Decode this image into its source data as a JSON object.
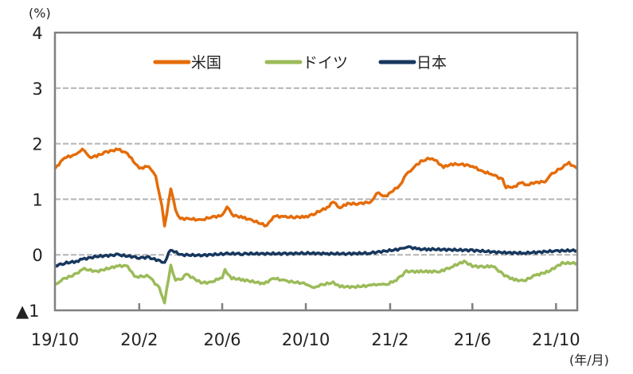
{
  "chart_data": {
    "type": "line",
    "y_unit": "(%)",
    "x_unit": "(年/月)",
    "ylim": [
      -1,
      4
    ],
    "y_ticks": [
      4,
      3,
      2,
      1,
      0,
      -1
    ],
    "y_tick_labels": [
      "4",
      "3",
      "2",
      "1",
      "0",
      "▲1"
    ],
    "x_tick_labels": [
      "19/10",
      "20/2",
      "20/6",
      "20/10",
      "21/2",
      "21/6",
      "21/10"
    ],
    "x_ticks": [
      "2019-10-01",
      "2020-02-01",
      "2020-06-01",
      "2020-10-01",
      "2021-02-01",
      "2021-06-01",
      "2021-10-01"
    ],
    "xlim": [
      "2019-10-01",
      "2021-11-01"
    ],
    "grid": "horizontal dashed",
    "legend_position": "top-center",
    "series": [
      {
        "name": "米国",
        "color": "#E46C0A",
        "points": [
          [
            "2019-10-01",
            1.55
          ],
          [
            "2019-10-15",
            1.75
          ],
          [
            "2019-11-01",
            1.8
          ],
          [
            "2019-11-10",
            1.92
          ],
          [
            "2019-11-20",
            1.75
          ],
          [
            "2019-12-01",
            1.78
          ],
          [
            "2019-12-15",
            1.85
          ],
          [
            "2020-01-01",
            1.9
          ],
          [
            "2020-01-15",
            1.82
          ],
          [
            "2020-02-01",
            1.55
          ],
          [
            "2020-02-15",
            1.6
          ],
          [
            "2020-02-25",
            1.4
          ],
          [
            "2020-03-05",
            0.9
          ],
          [
            "2020-03-09",
            0.5
          ],
          [
            "2020-03-18",
            1.2
          ],
          [
            "2020-03-25",
            0.8
          ],
          [
            "2020-04-01",
            0.65
          ],
          [
            "2020-04-15",
            0.65
          ],
          [
            "2020-05-01",
            0.62
          ],
          [
            "2020-05-15",
            0.68
          ],
          [
            "2020-06-01",
            0.7
          ],
          [
            "2020-06-08",
            0.88
          ],
          [
            "2020-06-15",
            0.72
          ],
          [
            "2020-07-01",
            0.67
          ],
          [
            "2020-07-15",
            0.62
          ],
          [
            "2020-08-05",
            0.52
          ],
          [
            "2020-08-15",
            0.7
          ],
          [
            "2020-09-01",
            0.68
          ],
          [
            "2020-09-15",
            0.68
          ],
          [
            "2020-10-01",
            0.68
          ],
          [
            "2020-10-15",
            0.75
          ],
          [
            "2020-11-01",
            0.85
          ],
          [
            "2020-11-10",
            0.95
          ],
          [
            "2020-11-20",
            0.85
          ],
          [
            "2020-12-01",
            0.92
          ],
          [
            "2020-12-15",
            0.92
          ],
          [
            "2021-01-05",
            0.95
          ],
          [
            "2021-01-12",
            1.12
          ],
          [
            "2021-01-25",
            1.05
          ],
          [
            "2021-02-05",
            1.15
          ],
          [
            "2021-02-15",
            1.25
          ],
          [
            "2021-02-25",
            1.45
          ],
          [
            "2021-03-05",
            1.55
          ],
          [
            "2021-03-18",
            1.68
          ],
          [
            "2021-03-31",
            1.74
          ],
          [
            "2021-04-10",
            1.68
          ],
          [
            "2021-04-20",
            1.58
          ],
          [
            "2021-05-01",
            1.63
          ],
          [
            "2021-05-15",
            1.63
          ],
          [
            "2021-06-01",
            1.6
          ],
          [
            "2021-06-15",
            1.5
          ],
          [
            "2021-07-01",
            1.45
          ],
          [
            "2021-07-15",
            1.35
          ],
          [
            "2021-07-20",
            1.22
          ],
          [
            "2021-08-01",
            1.22
          ],
          [
            "2021-08-10",
            1.3
          ],
          [
            "2021-08-20",
            1.26
          ],
          [
            "2021-09-01",
            1.3
          ],
          [
            "2021-09-15",
            1.32
          ],
          [
            "2021-09-25",
            1.45
          ],
          [
            "2021-10-10",
            1.58
          ],
          [
            "2021-10-20",
            1.65
          ],
          [
            "2021-11-01",
            1.55
          ]
        ]
      },
      {
        "name": "ドイツ",
        "color": "#9BBB59",
        "points": [
          [
            "2019-10-01",
            -0.55
          ],
          [
            "2019-10-10",
            -0.45
          ],
          [
            "2019-11-01",
            -0.35
          ],
          [
            "2019-11-10",
            -0.25
          ],
          [
            "2019-12-01",
            -0.3
          ],
          [
            "2020-01-01",
            -0.2
          ],
          [
            "2020-01-15",
            -0.2
          ],
          [
            "2020-01-25",
            -0.4
          ],
          [
            "2020-02-15",
            -0.38
          ],
          [
            "2020-03-01",
            -0.6
          ],
          [
            "2020-03-09",
            -0.85
          ],
          [
            "2020-03-18",
            -0.2
          ],
          [
            "2020-03-25",
            -0.45
          ],
          [
            "2020-04-01",
            -0.45
          ],
          [
            "2020-04-10",
            -0.35
          ],
          [
            "2020-05-01",
            -0.5
          ],
          [
            "2020-05-15",
            -0.5
          ],
          [
            "2020-06-01",
            -0.4
          ],
          [
            "2020-06-05",
            -0.28
          ],
          [
            "2020-06-15",
            -0.42
          ],
          [
            "2020-07-01",
            -0.45
          ],
          [
            "2020-08-01",
            -0.52
          ],
          [
            "2020-08-15",
            -0.42
          ],
          [
            "2020-09-01",
            -0.47
          ],
          [
            "2020-10-01",
            -0.52
          ],
          [
            "2020-10-10",
            -0.6
          ],
          [
            "2020-10-20",
            -0.55
          ],
          [
            "2020-11-10",
            -0.5
          ],
          [
            "2020-11-20",
            -0.57
          ],
          [
            "2020-12-10",
            -0.58
          ],
          [
            "2021-01-05",
            -0.55
          ],
          [
            "2021-01-15",
            -0.52
          ],
          [
            "2021-01-25",
            -0.55
          ],
          [
            "2021-02-10",
            -0.45
          ],
          [
            "2021-02-25",
            -0.3
          ],
          [
            "2021-03-15",
            -0.3
          ],
          [
            "2021-03-31",
            -0.3
          ],
          [
            "2021-04-15",
            -0.3
          ],
          [
            "2021-05-01",
            -0.22
          ],
          [
            "2021-05-20",
            -0.12
          ],
          [
            "2021-06-01",
            -0.2
          ],
          [
            "2021-06-15",
            -0.22
          ],
          [
            "2021-07-01",
            -0.2
          ],
          [
            "2021-07-15",
            -0.35
          ],
          [
            "2021-08-01",
            -0.45
          ],
          [
            "2021-08-15",
            -0.47
          ],
          [
            "2021-09-01",
            -0.37
          ],
          [
            "2021-09-20",
            -0.3
          ],
          [
            "2021-10-10",
            -0.15
          ],
          [
            "2021-11-01",
            -0.15
          ]
        ]
      },
      {
        "name": "日本",
        "color": "#17375E",
        "points": [
          [
            "2019-10-01",
            -0.2
          ],
          [
            "2019-10-15",
            -0.15
          ],
          [
            "2019-11-01",
            -0.12
          ],
          [
            "2019-11-10",
            -0.08
          ],
          [
            "2019-12-01",
            -0.03
          ],
          [
            "2020-01-01",
            0.0
          ],
          [
            "2020-02-01",
            -0.05
          ],
          [
            "2020-02-15",
            -0.05
          ],
          [
            "2020-03-05",
            -0.12
          ],
          [
            "2020-03-09",
            -0.15
          ],
          [
            "2020-03-15",
            0.05
          ],
          [
            "2020-03-20",
            0.08
          ],
          [
            "2020-04-01",
            0.0
          ],
          [
            "2020-05-01",
            -0.01
          ],
          [
            "2020-06-08",
            0.02
          ],
          [
            "2020-07-01",
            0.02
          ],
          [
            "2020-09-01",
            0.02
          ],
          [
            "2020-10-01",
            0.03
          ],
          [
            "2020-11-01",
            0.02
          ],
          [
            "2020-12-01",
            0.02
          ],
          [
            "2021-01-01",
            0.03
          ],
          [
            "2021-02-15",
            0.1
          ],
          [
            "2021-02-25",
            0.15
          ],
          [
            "2021-03-15",
            0.1
          ],
          [
            "2021-04-01",
            0.1
          ],
          [
            "2021-06-01",
            0.08
          ],
          [
            "2021-07-15",
            0.04
          ],
          [
            "2021-08-15",
            0.03
          ],
          [
            "2021-10-01",
            0.07
          ],
          [
            "2021-11-01",
            0.08
          ]
        ]
      }
    ]
  }
}
